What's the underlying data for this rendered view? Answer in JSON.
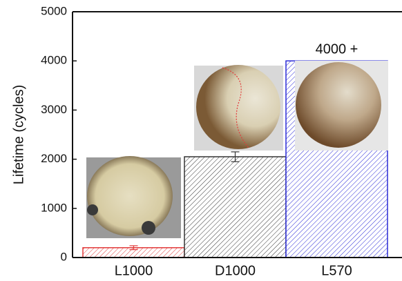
{
  "chart_data": {
    "type": "bar",
    "y_label": "Lifetime (cycles)",
    "categories": [
      "L1000",
      "D1000",
      "L570"
    ],
    "values": [
      200,
      2050,
      4000
    ],
    "errors": [
      40,
      100,
      null
    ],
    "value_labels": [
      null,
      null,
      "4000 +"
    ],
    "colors": [
      "#e23a3a",
      "#333333",
      "#2a2ad6"
    ],
    "ylim": [
      0,
      5000
    ],
    "yticks": [
      0,
      1000,
      2000,
      3000,
      4000,
      5000
    ],
    "hatched": true
  }
}
